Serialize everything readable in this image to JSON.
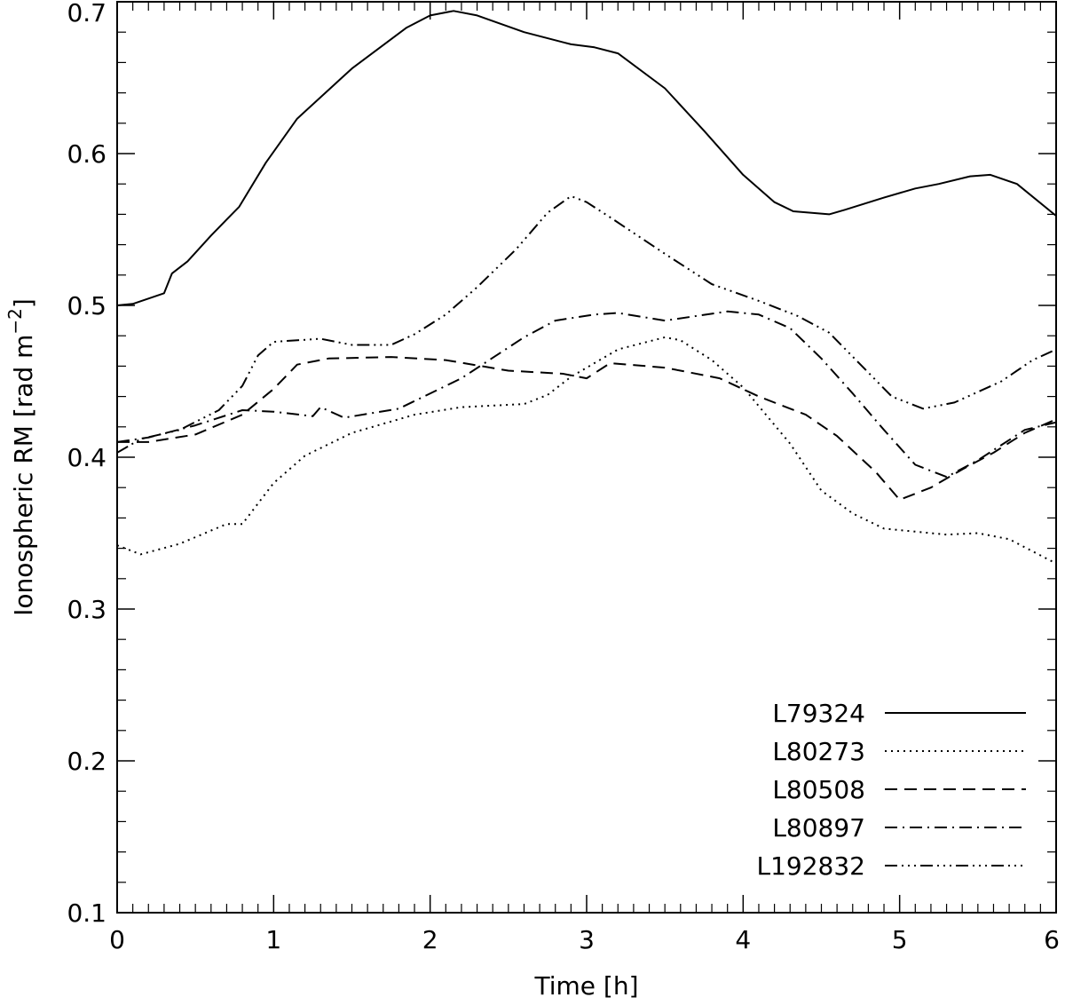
{
  "chart_data": {
    "type": "line",
    "xlabel": "Time [h]",
    "ylabel": "Ionospheric RM [rad m",
    "ylabel_sup": "−2",
    "ylabel_close": "]",
    "xlim": [
      0,
      6
    ],
    "ylim": [
      0.1,
      0.7
    ],
    "x_ticks": [
      0,
      1,
      2,
      3,
      4,
      5,
      6
    ],
    "x_tick_labels": [
      "0",
      "1",
      "2",
      "3",
      "4",
      "5",
      "6"
    ],
    "y_ticks": [
      0.1,
      0.2,
      0.3,
      0.4,
      0.5,
      0.6,
      0.7
    ],
    "y_tick_labels": [
      "0.1",
      "0.2",
      "0.3",
      "0.4",
      "0.5",
      "0.6",
      "0.7"
    ],
    "grid": false,
    "legend_position": "bottom-right",
    "series": [
      {
        "name": "L79324",
        "style": "solid",
        "x": [
          0,
          0.1,
          0.3,
          0.35,
          0.45,
          0.6,
          0.78,
          0.95,
          1.15,
          1.5,
          1.85,
          2.0,
          2.15,
          2.3,
          2.6,
          2.9,
          3.05,
          3.2,
          3.5,
          3.75,
          4.0,
          4.2,
          4.32,
          4.55,
          4.65,
          4.9,
          5.1,
          5.25,
          5.45,
          5.58,
          5.75,
          6.0
        ],
        "y": [
          0.5,
          0.501,
          0.508,
          0.521,
          0.529,
          0.546,
          0.565,
          0.594,
          0.623,
          0.656,
          0.683,
          0.691,
          0.694,
          0.691,
          0.68,
          0.672,
          0.67,
          0.666,
          0.643,
          0.615,
          0.586,
          0.568,
          0.562,
          0.56,
          0.563,
          0.571,
          0.577,
          0.58,
          0.585,
          0.586,
          0.58,
          0.559
        ]
      },
      {
        "name": "L80273",
        "style": "dotted",
        "x": [
          0,
          0.15,
          0.4,
          0.7,
          0.8,
          1.0,
          1.2,
          1.5,
          1.9,
          2.2,
          2.6,
          2.75,
          2.9,
          3.2,
          3.5,
          3.6,
          3.8,
          4.0,
          4.3,
          4.5,
          4.7,
          4.9,
          5.1,
          5.3,
          5.5,
          5.7,
          5.85,
          6.0
        ],
        "y": [
          0.342,
          0.336,
          0.343,
          0.356,
          0.356,
          0.383,
          0.401,
          0.416,
          0.428,
          0.433,
          0.435,
          0.441,
          0.453,
          0.471,
          0.479,
          0.477,
          0.464,
          0.446,
          0.409,
          0.378,
          0.363,
          0.353,
          0.351,
          0.349,
          0.35,
          0.346,
          0.338,
          0.33
        ]
      },
      {
        "name": "L80508",
        "style": "dashed",
        "x": [
          0,
          0.2,
          0.5,
          0.8,
          1.0,
          1.15,
          1.35,
          1.75,
          2.1,
          2.5,
          2.85,
          3.0,
          3.15,
          3.5,
          3.85,
          4.1,
          4.4,
          4.6,
          4.85,
          5.0,
          5.2,
          5.4,
          5.6,
          5.8,
          6.0
        ],
        "y": [
          0.41,
          0.41,
          0.415,
          0.428,
          0.445,
          0.461,
          0.465,
          0.466,
          0.464,
          0.457,
          0.455,
          0.452,
          0.462,
          0.459,
          0.452,
          0.44,
          0.428,
          0.414,
          0.39,
          0.372,
          0.38,
          0.392,
          0.403,
          0.416,
          0.425
        ]
      },
      {
        "name": "L80897",
        "style": "dashdot",
        "x": [
          0,
          0.2,
          0.5,
          0.8,
          1.0,
          1.25,
          1.3,
          1.45,
          1.8,
          2.2,
          2.6,
          2.8,
          3.05,
          3.2,
          3.5,
          3.9,
          4.1,
          4.3,
          4.5,
          4.7,
          4.9,
          5.1,
          5.3,
          5.5,
          5.8,
          6.0
        ],
        "y": [
          0.41,
          0.413,
          0.421,
          0.431,
          0.43,
          0.427,
          0.433,
          0.426,
          0.432,
          0.452,
          0.479,
          0.49,
          0.494,
          0.495,
          0.49,
          0.496,
          0.494,
          0.485,
          0.465,
          0.442,
          0.418,
          0.395,
          0.387,
          0.398,
          0.418,
          0.423
        ]
      },
      {
        "name": "L192832",
        "style": "dashdotdotdot",
        "x": [
          0,
          0.15,
          0.4,
          0.65,
          0.8,
          0.9,
          1.0,
          1.3,
          1.5,
          1.75,
          1.9,
          2.1,
          2.3,
          2.55,
          2.75,
          2.9,
          3.0,
          3.15,
          3.5,
          3.8,
          4.1,
          4.35,
          4.55,
          4.75,
          4.95,
          5.15,
          5.35,
          5.65,
          5.85,
          6.0
        ],
        "y": [
          0.403,
          0.412,
          0.418,
          0.431,
          0.447,
          0.467,
          0.476,
          0.478,
          0.474,
          0.474,
          0.481,
          0.494,
          0.512,
          0.537,
          0.561,
          0.572,
          0.568,
          0.558,
          0.534,
          0.514,
          0.503,
          0.493,
          0.482,
          0.461,
          0.44,
          0.432,
          0.436,
          0.45,
          0.464,
          0.471
        ]
      }
    ]
  }
}
